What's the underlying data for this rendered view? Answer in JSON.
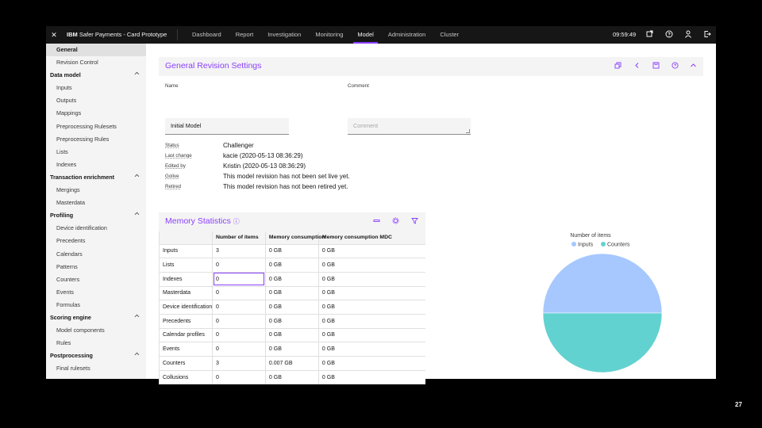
{
  "app": {
    "brand_bold": "IBM ",
    "brand_name": "Safer Payments - Card Prototype",
    "close_glyph": "✕",
    "clock": "09:59:49",
    "nav": [
      "Dashboard",
      "Report",
      "Investigation",
      "Monitoring",
      "Model",
      "Administration",
      "Cluster"
    ],
    "active_nav": "Model",
    "icons": [
      "window-icon",
      "help-icon",
      "user-icon",
      "logout-icon"
    ]
  },
  "sidebar": {
    "items": [
      {
        "type": "item",
        "label": "General",
        "active": true
      },
      {
        "type": "item",
        "label": "Revision Control"
      },
      {
        "type": "group",
        "label": "Data model"
      },
      {
        "type": "item",
        "label": "Inputs"
      },
      {
        "type": "item",
        "label": "Outputs"
      },
      {
        "type": "item",
        "label": "Mappings"
      },
      {
        "type": "item",
        "label": "Preprocessing Rulesets"
      },
      {
        "type": "item",
        "label": "Preprocessing Rules"
      },
      {
        "type": "item",
        "label": "Lists"
      },
      {
        "type": "item",
        "label": "Indexes"
      },
      {
        "type": "group",
        "label": "Transaction enrichment"
      },
      {
        "type": "item",
        "label": "Mergings"
      },
      {
        "type": "item",
        "label": "Masterdata"
      },
      {
        "type": "group",
        "label": "Profiling"
      },
      {
        "type": "item",
        "label": "Device identification"
      },
      {
        "type": "item",
        "label": "Precedents"
      },
      {
        "type": "item",
        "label": "Calendars"
      },
      {
        "type": "item",
        "label": "Patterns"
      },
      {
        "type": "item",
        "label": "Counters"
      },
      {
        "type": "item",
        "label": "Events"
      },
      {
        "type": "item",
        "label": "Formulas"
      },
      {
        "type": "group",
        "label": "Scoring engine"
      },
      {
        "type": "item",
        "label": "Model components"
      },
      {
        "type": "item",
        "label": "Rules"
      },
      {
        "type": "group",
        "label": "Postprocessing"
      },
      {
        "type": "item",
        "label": "Final rulesets"
      }
    ]
  },
  "general": {
    "title": "General Revision Settings",
    "name_label": "Name",
    "name_value": "Initial Model",
    "comment_label": "Comment",
    "comment_placeholder": "Comment",
    "details": [
      {
        "label": "Status",
        "value": "Challenger"
      },
      {
        "label": "Last change",
        "value": "kacie (2020-05-13 08:36:29)"
      },
      {
        "label": "Edited by",
        "value": "Kristin (2020-05-13 08:36:29)"
      },
      {
        "label": "Golive",
        "value": "This model revision has not been set live yet."
      },
      {
        "label": "Retired",
        "value": "This model revision has not been retired yet."
      }
    ]
  },
  "memory": {
    "title": "Memory Statistics",
    "info_glyph": "ⓘ",
    "columns": [
      "",
      "Number of items",
      "Memory consumption",
      "Memory consumption MDC"
    ],
    "rows": [
      [
        "Inputs",
        "3",
        "0 GB",
        "0 GB"
      ],
      [
        "Lists",
        "0",
        "0 GB",
        "0 GB"
      ],
      [
        "Indexes",
        "0",
        "0 GB",
        "0 GB"
      ],
      [
        "Masterdata",
        "0",
        "0 GB",
        "0 GB"
      ],
      [
        "Device identification",
        "0",
        "0 GB",
        "0 GB"
      ],
      [
        "Precedents",
        "0",
        "0 GB",
        "0 GB"
      ],
      [
        "Calendar profiles",
        "0",
        "0 GB",
        "0 GB"
      ],
      [
        "Events",
        "0",
        "0 GB",
        "0 GB"
      ],
      [
        "Counters",
        "3",
        "0.007 GB",
        "0 GB"
      ],
      [
        "Collusions",
        "0",
        "0 GB",
        "0 GB"
      ]
    ],
    "focused_cell": [
      2,
      1
    ]
  },
  "chart_data": {
    "type": "pie",
    "title": "Number of items",
    "legend_position": "top",
    "slices": [
      {
        "name": "Inputs",
        "value": 3,
        "color": "#a6c8ff"
      },
      {
        "name": "Counters",
        "value": 3,
        "color": "#62d2d0"
      }
    ]
  },
  "slide_number": "27",
  "colors": {
    "accent": "#8a3ffc",
    "topbar": "#161616",
    "sidebar": "#f4f4f4"
  }
}
